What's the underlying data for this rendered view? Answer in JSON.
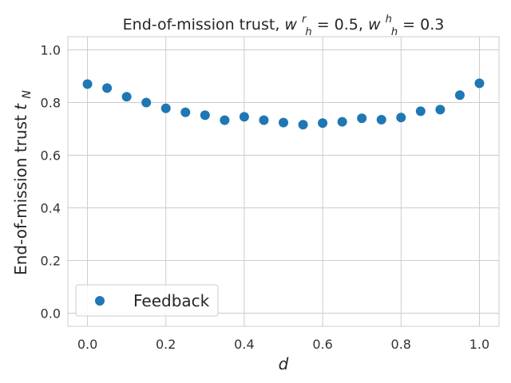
{
  "chart_data": {
    "type": "scatter",
    "title": "End-of-mission trust, ",
    "title_math": [
      {
        "base": "w",
        "sup": "r",
        "sub": "h",
        "rest": " = 0.5, "
      },
      {
        "base": "w",
        "sup": "h",
        "sub": "h",
        "rest": " = 0.3"
      }
    ],
    "xlabel": "d",
    "ylabel": "End-of-mission trust ",
    "ylabel_math": {
      "base": "t",
      "sub": "N"
    },
    "xlim": [
      -0.05,
      1.05
    ],
    "ylim": [
      -0.05,
      1.05
    ],
    "xticks": [
      "0.0",
      "0.2",
      "0.4",
      "0.6",
      "0.8",
      "1.0"
    ],
    "yticks": [
      "0.0",
      "0.2",
      "0.4",
      "0.6",
      "0.8",
      "1.0"
    ],
    "grid": true,
    "legend_position": "lower-left",
    "series": [
      {
        "name": "Feedback",
        "color": "#1f77b4",
        "x": [
          0.0,
          0.05,
          0.1,
          0.15,
          0.2,
          0.25,
          0.3,
          0.35,
          0.4,
          0.45,
          0.5,
          0.55,
          0.6,
          0.65,
          0.7,
          0.75,
          0.8,
          0.85,
          0.9,
          0.95,
          1.0
        ],
        "y": [
          0.87,
          0.855,
          0.822,
          0.8,
          0.778,
          0.763,
          0.752,
          0.733,
          0.746,
          0.733,
          0.724,
          0.716,
          0.722,
          0.727,
          0.74,
          0.735,
          0.743,
          0.767,
          0.773,
          0.828,
          0.873
        ]
      }
    ]
  }
}
